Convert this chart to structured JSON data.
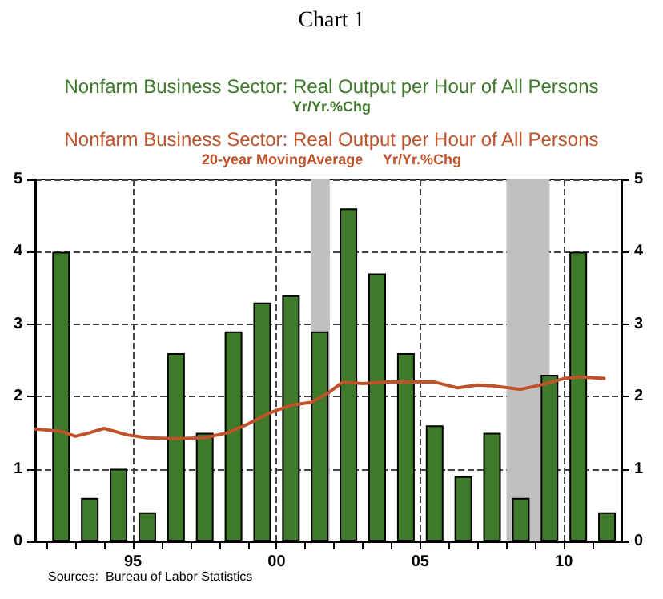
{
  "chart_data": {
    "type": "bar",
    "title": "Chart 1",
    "x": [
      1992.5,
      1993.5,
      1994.5,
      1995.5,
      1996.5,
      1997.5,
      1998.5,
      1999.5,
      2000.5,
      2001.5,
      2002.5,
      2003.5,
      2004.5,
      2005.5,
      2006.5,
      2007.5,
      2008.5,
      2009.5,
      2010.5,
      2011.5
    ],
    "series": [
      {
        "name": "Nonfarm Business Sector: Real Output per Hour of All Persons\nYr/Yr.%Chg",
        "color": "#3f7a2b",
        "values": [
          4.0,
          0.6,
          1.0,
          0.4,
          2.6,
          1.5,
          2.9,
          3.3,
          3.4,
          2.9,
          4.6,
          3.7,
          2.6,
          1.6,
          0.9,
          1.5,
          0.6,
          2.3,
          4.0,
          0.4
        ]
      },
      {
        "name": "Nonfarm Business Sector: Real Output per Hour of All Persons\n20-year MovingAverage     Yr/Yr.%Chg",
        "type": "line",
        "color": "#c0522a",
        "x": [
          1991.6,
          1992.5,
          1993,
          1993.5,
          1994,
          1994.8,
          1995.5,
          1996.5,
          1997.5,
          1998.3,
          1999,
          1999.8,
          2000.5,
          2001.2,
          2001.8,
          2002.3,
          2003,
          2003.8,
          2004.5,
          2005.5,
          2006.3,
          2007,
          2007.5,
          2008.5,
          2009.3,
          2010,
          2010.6,
          2011.4
        ],
        "values": [
          1.55,
          1.52,
          1.45,
          1.5,
          1.56,
          1.47,
          1.43,
          1.42,
          1.43,
          1.5,
          1.62,
          1.78,
          1.88,
          1.92,
          2.05,
          2.2,
          2.18,
          2.2,
          2.2,
          2.2,
          2.12,
          2.16,
          2.15,
          2.1,
          2.17,
          2.25,
          2.27,
          2.25
        ]
      }
    ],
    "xlim": [
      1991.6,
      2012
    ],
    "xticks": [
      {
        "value": 1992,
        "label": null
      },
      {
        "value": 1993,
        "label": null
      },
      {
        "value": 1994,
        "label": null
      },
      {
        "value": 1995,
        "label": "95"
      },
      {
        "value": 1996,
        "label": null
      },
      {
        "value": 1997,
        "label": null
      },
      {
        "value": 1998,
        "label": null
      },
      {
        "value": 1999,
        "label": null
      },
      {
        "value": 2000,
        "label": "00"
      },
      {
        "value": 2001,
        "label": null
      },
      {
        "value": 2002,
        "label": null
      },
      {
        "value": 2003,
        "label": null
      },
      {
        "value": 2004,
        "label": null
      },
      {
        "value": 2005,
        "label": "05"
      },
      {
        "value": 2006,
        "label": null
      },
      {
        "value": 2007,
        "label": null
      },
      {
        "value": 2008,
        "label": null
      },
      {
        "value": 2009,
        "label": null
      },
      {
        "value": 2010,
        "label": "10"
      },
      {
        "value": 2011,
        "label": null
      }
    ],
    "ylim": [
      0,
      5
    ],
    "yticks": [
      0,
      1,
      2,
      3,
      4,
      5
    ],
    "y2lim": [
      0,
      5
    ],
    "y2ticks": [
      0,
      1,
      2,
      3,
      4,
      5
    ],
    "bands": [
      {
        "axis": "x",
        "from": 2001.2,
        "to": 2001.85,
        "color": "#c0c0c0"
      },
      {
        "axis": "x",
        "from": 2008.0,
        "to": 2009.5,
        "color": "#c0c0c0"
      }
    ],
    "annotations": [
      "Sources:  Bureau of Labor Statistics"
    ],
    "grid": true,
    "legend": "top",
    "marker": "none",
    "line_style": "solid"
  }
}
